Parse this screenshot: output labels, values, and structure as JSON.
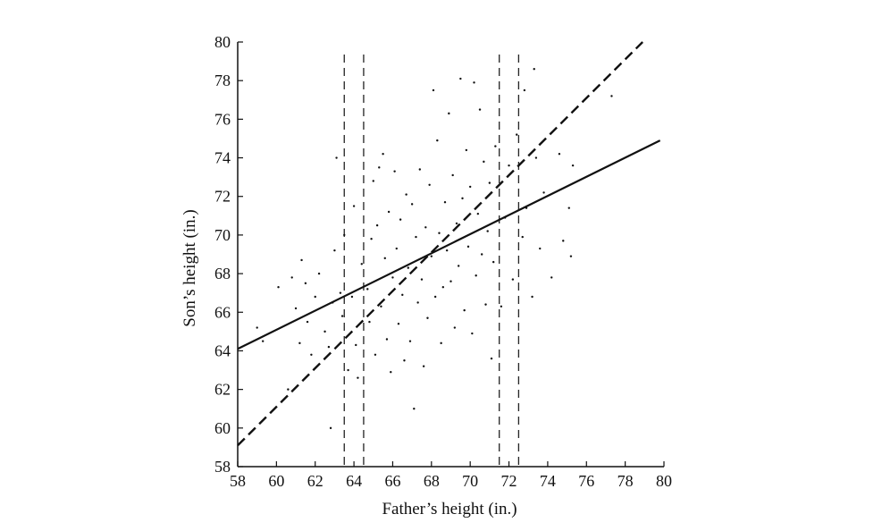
{
  "chart_data": {
    "type": "scatter",
    "xlabel": "Father’s height (in.)",
    "ylabel": "Son’s height (in.)",
    "xlim": [
      58,
      80
    ],
    "ylim": [
      58,
      80
    ],
    "xticks": [
      58,
      60,
      62,
      64,
      66,
      68,
      70,
      72,
      74,
      76,
      78,
      80
    ],
    "yticks": [
      58,
      60,
      62,
      64,
      66,
      68,
      70,
      72,
      74,
      76,
      78,
      80
    ],
    "grid": false,
    "series": [
      {
        "kind": "points",
        "marker": "dot",
        "points": [
          [
            59,
            65.2
          ],
          [
            59.3,
            64.5
          ],
          [
            60.1,
            67.3
          ],
          [
            60.6,
            62
          ],
          [
            60.8,
            67.8
          ],
          [
            61,
            66.2
          ],
          [
            61.2,
            64.4
          ],
          [
            61.3,
            68.7
          ],
          [
            61.5,
            67.5
          ],
          [
            61.6,
            65.5
          ],
          [
            61.8,
            63.8
          ],
          [
            62,
            66.8
          ],
          [
            62.2,
            68
          ],
          [
            62.5,
            65
          ],
          [
            62.7,
            64.2
          ],
          [
            62.9,
            66.5
          ],
          [
            63,
            69.2
          ],
          [
            63.1,
            74
          ],
          [
            63.3,
            67
          ],
          [
            63.4,
            65.8
          ],
          [
            62.8,
            60
          ],
          [
            63.5,
            70
          ],
          [
            63.7,
            63
          ],
          [
            63.9,
            66.8
          ],
          [
            64,
            71.5
          ],
          [
            64.1,
            64.3
          ],
          [
            64.2,
            62.6
          ],
          [
            64.4,
            68.5
          ],
          [
            64.7,
            67.2
          ],
          [
            64.8,
            65.5
          ],
          [
            64.9,
            69.8
          ],
          [
            65,
            72.8
          ],
          [
            65.1,
            63.8
          ],
          [
            65.2,
            70.5
          ],
          [
            65.3,
            73.5
          ],
          [
            65.4,
            66.3
          ],
          [
            65.5,
            74.2
          ],
          [
            65.6,
            68.8
          ],
          [
            65.7,
            64.6
          ],
          [
            65.8,
            71.2
          ],
          [
            65.9,
            62.9
          ],
          [
            66,
            67.8
          ],
          [
            66.1,
            73.3
          ],
          [
            66.2,
            69.3
          ],
          [
            66.3,
            65.4
          ],
          [
            66.4,
            70.8
          ],
          [
            66.5,
            66.9
          ],
          [
            66.6,
            63.5
          ],
          [
            66.7,
            72.1
          ],
          [
            66.8,
            68.3
          ],
          [
            66.9,
            64.5
          ],
          [
            67,
            71.6
          ],
          [
            67.1,
            61
          ],
          [
            67.2,
            69.9
          ],
          [
            67.3,
            66.5
          ],
          [
            67.4,
            73.4
          ],
          [
            67.5,
            67.7
          ],
          [
            67.6,
            63.2
          ],
          [
            67.7,
            70.4
          ],
          [
            67.8,
            65.7
          ],
          [
            67.9,
            72.6
          ],
          [
            68,
            68.9
          ],
          [
            68.1,
            77.5
          ],
          [
            68.2,
            66.8
          ],
          [
            68.3,
            74.9
          ],
          [
            68.4,
            70.1
          ],
          [
            68.5,
            64.4
          ],
          [
            68.6,
            67.3
          ],
          [
            68.7,
            71.7
          ],
          [
            68.8,
            69.2
          ],
          [
            68.9,
            76.3
          ],
          [
            69,
            67.6
          ],
          [
            69.1,
            73.1
          ],
          [
            69.2,
            65.2
          ],
          [
            69.3,
            70.6
          ],
          [
            69.4,
            68.4
          ],
          [
            69.5,
            78.1
          ],
          [
            69.6,
            71.9
          ],
          [
            69.7,
            66.1
          ],
          [
            69.8,
            74.4
          ],
          [
            69.9,
            69.4
          ],
          [
            70,
            72.5
          ],
          [
            70.1,
            64.9
          ],
          [
            70.2,
            77.9
          ],
          [
            70.3,
            67.9
          ],
          [
            70.4,
            71.1
          ],
          [
            70.5,
            76.5
          ],
          [
            70.6,
            69
          ],
          [
            70.7,
            73.8
          ],
          [
            70.8,
            66.4
          ],
          [
            70.9,
            70.2
          ],
          [
            71,
            72.7
          ],
          [
            71.1,
            63.6
          ],
          [
            71.2,
            68.6
          ],
          [
            71.3,
            74.6
          ],
          [
            71.6,
            66.3
          ],
          [
            71.8,
            70.9
          ],
          [
            72,
            73.6
          ],
          [
            72.2,
            67.7
          ],
          [
            72.4,
            75.2
          ],
          [
            72.7,
            69.9
          ],
          [
            72.8,
            77.5
          ],
          [
            72.9,
            71.4
          ],
          [
            73.2,
            66.8
          ],
          [
            73.3,
            78.6
          ],
          [
            73.4,
            74
          ],
          [
            73.6,
            69.3
          ],
          [
            73.8,
            72.2
          ],
          [
            74.2,
            67.8
          ],
          [
            74.6,
            74.2
          ],
          [
            74.8,
            69.7
          ],
          [
            75.1,
            71.4
          ],
          [
            75.2,
            68.9
          ],
          [
            75.3,
            73.6
          ],
          [
            77.3,
            77.2
          ]
        ]
      },
      {
        "kind": "line",
        "style": "solid",
        "from": [
          58,
          64.1
        ],
        "to": [
          79.8,
          74.9
        ]
      },
      {
        "kind": "line",
        "style": "dashed",
        "from": [
          58,
          59.1
        ],
        "to": [
          78.9,
          80
        ]
      }
    ],
    "vertical_reference_lines": [
      {
        "x": 63.5,
        "style": "dashed"
      },
      {
        "x": 64.5,
        "style": "dashed"
      },
      {
        "x": 71.5,
        "style": "dashed"
      },
      {
        "x": 72.5,
        "style": "dashed"
      }
    ]
  }
}
